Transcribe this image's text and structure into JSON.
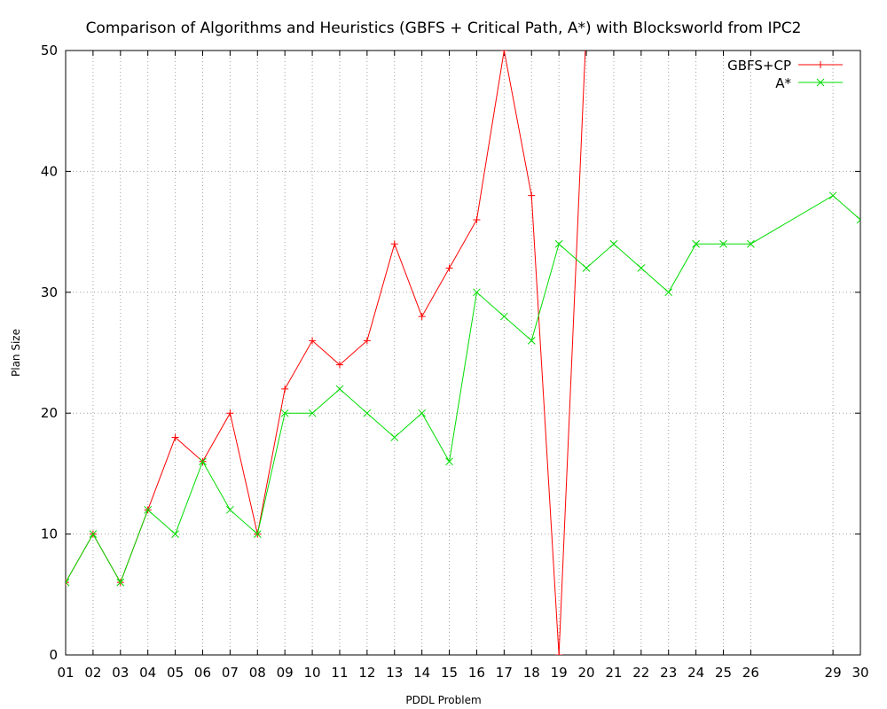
{
  "chart_data": {
    "type": "line",
    "title": "Comparison of Algorithms and Heuristics (GBFS + Critical Path, A*) with Blocksworld from IPC2",
    "xlabel": "PDDL Problem",
    "ylabel": "Plan Size",
    "ylim": [
      0,
      50
    ],
    "yticks": [
      "0",
      "10",
      "20",
      "30",
      "40",
      "50"
    ],
    "xticks": [
      "01",
      "02",
      "03",
      "04",
      "05",
      "06",
      "07",
      "08",
      "09",
      "10",
      "11",
      "12",
      "13",
      "14",
      "15",
      "16",
      "17",
      "18",
      "19",
      "20",
      "21",
      "22",
      "23",
      "24",
      "25",
      "26",
      "29",
      "30"
    ],
    "xlim": [
      1,
      30
    ],
    "grid": true,
    "legend_position": "top-right",
    "series": [
      {
        "name": "GBFS+CP",
        "color": "#ff0000",
        "marker": "plus",
        "x": [
          1,
          2,
          3,
          4,
          5,
          6,
          7,
          8,
          9,
          10,
          11,
          12,
          13,
          14,
          15,
          16,
          17,
          18,
          19,
          20
        ],
        "values": [
          6,
          10,
          6,
          12,
          18,
          16,
          20,
          10,
          22,
          26,
          24,
          26,
          34,
          28,
          32,
          36,
          50,
          38,
          0,
          52
        ]
      },
      {
        "name": "A*",
        "color": "#00dd00",
        "marker": "cross",
        "x": [
          1,
          2,
          3,
          4,
          5,
          6,
          7,
          8,
          9,
          10,
          11,
          12,
          13,
          14,
          15,
          16,
          17,
          18,
          19,
          20,
          21,
          22,
          23,
          24,
          25,
          26,
          29,
          30
        ],
        "values": [
          6,
          10,
          6,
          12,
          10,
          16,
          12,
          10,
          20,
          20,
          22,
          20,
          18,
          20,
          16,
          30,
          28,
          26,
          34,
          32,
          34,
          32,
          30,
          34,
          34,
          34,
          38,
          36
        ]
      }
    ]
  }
}
